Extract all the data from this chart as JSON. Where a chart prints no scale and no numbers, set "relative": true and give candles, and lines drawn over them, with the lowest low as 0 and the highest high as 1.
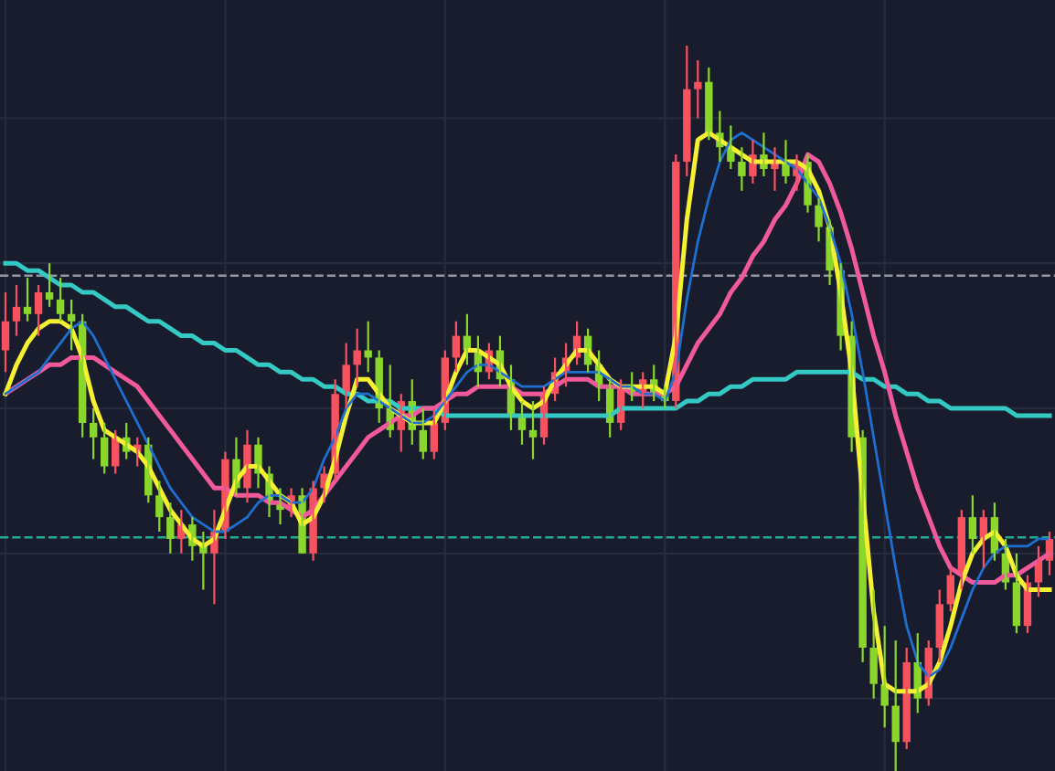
{
  "chart_data": {
    "type": "candlestick",
    "relative": true,
    "grid": true,
    "categories": [
      null,
      null,
      null,
      null,
      null,
      null,
      null,
      null,
      null,
      null,
      null,
      null,
      null,
      null,
      null,
      null,
      null,
      null,
      null,
      null,
      null,
      null,
      null,
      null,
      null,
      null,
      null,
      null,
      null,
      null,
      null,
      null,
      null,
      null,
      null,
      null,
      null,
      null,
      null,
      null,
      null,
      null,
      null,
      null,
      null,
      null,
      null,
      null,
      null,
      null,
      null,
      null,
      null,
      null,
      null,
      null,
      null,
      null,
      null,
      null,
      null,
      null,
      null,
      null,
      null,
      null,
      null,
      null,
      null,
      null,
      null,
      null,
      null,
      null,
      null,
      null,
      null,
      null,
      null,
      null,
      null,
      null,
      null,
      null,
      null,
      null,
      null,
      null,
      null,
      null,
      null,
      null,
      null,
      null,
      null,
      null
    ],
    "ohlc": [
      [
        0.58,
        0.66,
        0.55,
        0.62
      ],
      [
        0.62,
        0.67,
        0.6,
        0.64
      ],
      [
        0.64,
        0.68,
        0.62,
        0.63
      ],
      [
        0.63,
        0.67,
        0.6,
        0.66
      ],
      [
        0.66,
        0.7,
        0.64,
        0.65
      ],
      [
        0.65,
        0.68,
        0.62,
        0.63
      ],
      [
        0.63,
        0.65,
        0.58,
        0.62
      ],
      [
        0.62,
        0.63,
        0.46,
        0.48
      ],
      [
        0.48,
        0.5,
        0.43,
        0.46
      ],
      [
        0.46,
        0.48,
        0.41,
        0.42
      ],
      [
        0.42,
        0.47,
        0.41,
        0.46
      ],
      [
        0.46,
        0.48,
        0.43,
        0.44
      ],
      [
        0.44,
        0.46,
        0.42,
        0.45
      ],
      [
        0.45,
        0.46,
        0.37,
        0.38
      ],
      [
        0.38,
        0.4,
        0.33,
        0.35
      ],
      [
        0.35,
        0.37,
        0.3,
        0.32
      ],
      [
        0.32,
        0.36,
        0.3,
        0.34
      ],
      [
        0.34,
        0.35,
        0.29,
        0.31
      ],
      [
        0.31,
        0.33,
        0.25,
        0.3
      ],
      [
        0.3,
        0.36,
        0.23,
        0.33
      ],
      [
        0.33,
        0.44,
        0.32,
        0.43
      ],
      [
        0.43,
        0.46,
        0.38,
        0.39
      ],
      [
        0.39,
        0.47,
        0.37,
        0.45
      ],
      [
        0.45,
        0.46,
        0.39,
        0.41
      ],
      [
        0.41,
        0.42,
        0.35,
        0.37
      ],
      [
        0.37,
        0.39,
        0.34,
        0.36
      ],
      [
        0.36,
        0.39,
        0.35,
        0.38
      ],
      [
        0.38,
        0.39,
        0.3,
        0.3
      ],
      [
        0.3,
        0.4,
        0.29,
        0.39
      ],
      [
        0.39,
        0.42,
        0.37,
        0.41
      ],
      [
        0.41,
        0.54,
        0.4,
        0.52
      ],
      [
        0.52,
        0.59,
        0.5,
        0.56
      ],
      [
        0.56,
        0.61,
        0.53,
        0.58
      ],
      [
        0.58,
        0.62,
        0.55,
        0.57
      ],
      [
        0.57,
        0.58,
        0.48,
        0.5
      ],
      [
        0.5,
        0.56,
        0.46,
        0.47
      ],
      [
        0.47,
        0.52,
        0.44,
        0.51
      ],
      [
        0.51,
        0.54,
        0.45,
        0.47
      ],
      [
        0.47,
        0.5,
        0.43,
        0.44
      ],
      [
        0.44,
        0.5,
        0.43,
        0.48
      ],
      [
        0.48,
        0.58,
        0.47,
        0.57
      ],
      [
        0.57,
        0.62,
        0.55,
        0.6
      ],
      [
        0.6,
        0.63,
        0.56,
        0.58
      ],
      [
        0.58,
        0.6,
        0.53,
        0.55
      ],
      [
        0.55,
        0.59,
        0.54,
        0.58
      ],
      [
        0.58,
        0.6,
        0.53,
        0.54
      ],
      [
        0.54,
        0.56,
        0.47,
        0.49
      ],
      [
        0.49,
        0.51,
        0.45,
        0.47
      ],
      [
        0.47,
        0.51,
        0.43,
        0.46
      ],
      [
        0.46,
        0.53,
        0.45,
        0.52
      ],
      [
        0.52,
        0.57,
        0.51,
        0.55
      ],
      [
        0.55,
        0.59,
        0.53,
        0.57
      ],
      [
        0.57,
        0.62,
        0.56,
        0.6
      ],
      [
        0.6,
        0.61,
        0.55,
        0.56
      ],
      [
        0.56,
        0.58,
        0.51,
        0.53
      ],
      [
        0.53,
        0.54,
        0.46,
        0.48
      ],
      [
        0.48,
        0.54,
        0.47,
        0.53
      ],
      [
        0.53,
        0.55,
        0.51,
        0.52
      ],
      [
        0.52,
        0.55,
        0.5,
        0.54
      ],
      [
        0.54,
        0.56,
        0.51,
        0.52
      ],
      [
        0.52,
        0.53,
        0.5,
        0.51
      ],
      [
        0.51,
        0.85,
        0.5,
        0.84
      ],
      [
        0.84,
        1.0,
        0.82,
        0.94
      ],
      [
        0.94,
        0.98,
        0.9,
        0.95
      ],
      [
        0.95,
        0.97,
        0.87,
        0.88
      ],
      [
        0.88,
        0.91,
        0.84,
        0.86
      ],
      [
        0.86,
        0.89,
        0.83,
        0.84
      ],
      [
        0.84,
        0.86,
        0.8,
        0.82
      ],
      [
        0.82,
        0.87,
        0.81,
        0.85
      ],
      [
        0.85,
        0.88,
        0.82,
        0.83
      ],
      [
        0.83,
        0.86,
        0.8,
        0.84
      ],
      [
        0.84,
        0.87,
        0.81,
        0.82
      ],
      [
        0.82,
        0.85,
        0.8,
        0.84
      ],
      [
        0.84,
        0.85,
        0.77,
        0.78
      ],
      [
        0.78,
        0.79,
        0.73,
        0.75
      ],
      [
        0.75,
        0.76,
        0.67,
        0.69
      ],
      [
        0.69,
        0.7,
        0.58,
        0.6
      ],
      [
        0.6,
        0.62,
        0.44,
        0.46
      ],
      [
        0.46,
        0.47,
        0.15,
        0.17
      ],
      [
        0.17,
        0.25,
        0.1,
        0.12
      ],
      [
        0.12,
        0.2,
        0.06,
        0.09
      ],
      [
        0.09,
        0.18,
        0.0,
        0.04
      ],
      [
        0.04,
        0.17,
        0.03,
        0.15
      ],
      [
        0.15,
        0.19,
        0.08,
        0.1
      ],
      [
        0.1,
        0.18,
        0.09,
        0.17
      ],
      [
        0.17,
        0.25,
        0.15,
        0.23
      ],
      [
        0.23,
        0.28,
        0.22,
        0.27
      ],
      [
        0.27,
        0.36,
        0.25,
        0.35
      ],
      [
        0.35,
        0.38,
        0.3,
        0.32
      ],
      [
        0.32,
        0.36,
        0.28,
        0.35
      ],
      [
        0.35,
        0.37,
        0.29,
        0.3
      ],
      [
        0.3,
        0.32,
        0.25,
        0.26
      ],
      [
        0.26,
        0.3,
        0.19,
        0.2
      ],
      [
        0.2,
        0.27,
        0.19,
        0.26
      ],
      [
        0.26,
        0.31,
        0.24,
        0.29
      ],
      [
        0.29,
        0.33,
        0.27,
        0.32
      ]
    ],
    "colors": [
      "#f7525f",
      "#f7525f",
      "#8bd62c",
      "#f7525f",
      "#8bd62c",
      "#8bd62c",
      "#8bd62c",
      "#8bd62c",
      "#8bd62c",
      "#8bd62c",
      "#f7525f",
      "#8bd62c",
      "#f7525f",
      "#8bd62c",
      "#8bd62c",
      "#8bd62c",
      "#f7525f",
      "#8bd62c",
      "#8bd62c",
      "#f7525f",
      "#f7525f",
      "#8bd62c",
      "#f7525f",
      "#8bd62c",
      "#8bd62c",
      "#8bd62c",
      "#f7525f",
      "#8bd62c",
      "#f7525f",
      "#f7525f",
      "#f7525f",
      "#f7525f",
      "#f7525f",
      "#8bd62c",
      "#8bd62c",
      "#8bd62c",
      "#f7525f",
      "#8bd62c",
      "#8bd62c",
      "#f7525f",
      "#f7525f",
      "#f7525f",
      "#8bd62c",
      "#8bd62c",
      "#f7525f",
      "#8bd62c",
      "#8bd62c",
      "#8bd62c",
      "#8bd62c",
      "#f7525f",
      "#f7525f",
      "#f7525f",
      "#f7525f",
      "#8bd62c",
      "#8bd62c",
      "#8bd62c",
      "#f7525f",
      "#8bd62c",
      "#f7525f",
      "#8bd62c",
      "#8bd62c",
      "#f7525f",
      "#f7525f",
      "#f7525f",
      "#8bd62c",
      "#8bd62c",
      "#8bd62c",
      "#8bd62c",
      "#f7525f",
      "#8bd62c",
      "#f7525f",
      "#8bd62c",
      "#f7525f",
      "#8bd62c",
      "#8bd62c",
      "#8bd62c",
      "#8bd62c",
      "#8bd62c",
      "#8bd62c",
      "#8bd62c",
      "#8bd62c",
      "#8bd62c",
      "#f7525f",
      "#8bd62c",
      "#f7525f",
      "#f7525f",
      "#f7525f",
      "#f7525f",
      "#8bd62c",
      "#f7525f",
      "#8bd62c",
      "#8bd62c",
      "#8bd62c",
      "#f7525f",
      "#f7525f",
      "#f7525f"
    ],
    "series": [
      {
        "type": "line",
        "color": "#35c9c3",
        "values": [
          0.7,
          0.7,
          0.69,
          0.69,
          0.68,
          0.67,
          0.67,
          0.66,
          0.66,
          0.65,
          0.64,
          0.64,
          0.63,
          0.62,
          0.62,
          0.61,
          0.6,
          0.6,
          0.59,
          0.59,
          0.58,
          0.58,
          0.57,
          0.56,
          0.56,
          0.55,
          0.55,
          0.54,
          0.54,
          0.53,
          0.53,
          0.52,
          0.52,
          0.51,
          0.51,
          0.51,
          0.5,
          0.5,
          0.5,
          0.5,
          0.49,
          0.49,
          0.49,
          0.49,
          0.49,
          0.49,
          0.49,
          0.49,
          0.49,
          0.49,
          0.49,
          0.49,
          0.49,
          0.49,
          0.49,
          0.49,
          0.5,
          0.5,
          0.5,
          0.5,
          0.5,
          0.5,
          0.51,
          0.51,
          0.52,
          0.52,
          0.53,
          0.53,
          0.54,
          0.54,
          0.54,
          0.54,
          0.55,
          0.55,
          0.55,
          0.55,
          0.55,
          0.55,
          0.54,
          0.54,
          0.53,
          0.53,
          0.52,
          0.52,
          0.51,
          0.51,
          0.5,
          0.5,
          0.5,
          0.5,
          0.5,
          0.5,
          0.49,
          0.49,
          0.49,
          0.49
        ]
      },
      {
        "type": "line",
        "color": "#f05a9a",
        "values": [
          0.52,
          0.53,
          0.54,
          0.55,
          0.56,
          0.56,
          0.57,
          0.57,
          0.57,
          0.56,
          0.55,
          0.54,
          0.53,
          0.51,
          0.49,
          0.47,
          0.45,
          0.43,
          0.41,
          0.39,
          0.39,
          0.38,
          0.38,
          0.38,
          0.37,
          0.37,
          0.36,
          0.35,
          0.36,
          0.38,
          0.4,
          0.42,
          0.44,
          0.46,
          0.47,
          0.48,
          0.49,
          0.49,
          0.5,
          0.5,
          0.51,
          0.52,
          0.52,
          0.53,
          0.53,
          0.53,
          0.53,
          0.52,
          0.52,
          0.52,
          0.53,
          0.54,
          0.54,
          0.54,
          0.53,
          0.53,
          0.53,
          0.52,
          0.52,
          0.52,
          0.52,
          0.53,
          0.56,
          0.59,
          0.61,
          0.63,
          0.66,
          0.68,
          0.71,
          0.73,
          0.76,
          0.78,
          0.81,
          0.85,
          0.84,
          0.81,
          0.77,
          0.72,
          0.66,
          0.6,
          0.55,
          0.49,
          0.44,
          0.39,
          0.35,
          0.31,
          0.28,
          0.27,
          0.26,
          0.26,
          0.26,
          0.27,
          0.27,
          0.28,
          0.29,
          0.3
        ]
      },
      {
        "type": "line",
        "color": "#1e6fd0",
        "values": [
          0.52,
          0.53,
          0.54,
          0.55,
          0.57,
          0.59,
          0.61,
          0.62,
          0.6,
          0.57,
          0.54,
          0.51,
          0.48,
          0.45,
          0.42,
          0.39,
          0.37,
          0.35,
          0.34,
          0.33,
          0.33,
          0.34,
          0.35,
          0.37,
          0.38,
          0.38,
          0.37,
          0.37,
          0.39,
          0.43,
          0.46,
          0.5,
          0.52,
          0.52,
          0.51,
          0.5,
          0.49,
          0.48,
          0.48,
          0.49,
          0.51,
          0.53,
          0.55,
          0.56,
          0.56,
          0.55,
          0.54,
          0.53,
          0.53,
          0.53,
          0.54,
          0.55,
          0.55,
          0.55,
          0.55,
          0.54,
          0.53,
          0.53,
          0.52,
          0.52,
          0.51,
          0.55,
          0.65,
          0.73,
          0.79,
          0.84,
          0.87,
          0.88,
          0.87,
          0.86,
          0.85,
          0.84,
          0.83,
          0.81,
          0.79,
          0.75,
          0.7,
          0.63,
          0.55,
          0.46,
          0.37,
          0.28,
          0.2,
          0.15,
          0.13,
          0.14,
          0.17,
          0.21,
          0.25,
          0.28,
          0.3,
          0.31,
          0.31,
          0.31,
          0.32,
          0.32
        ]
      },
      {
        "type": "line",
        "color": "#f5f032",
        "values": [
          0.52,
          0.56,
          0.59,
          0.61,
          0.62,
          0.62,
          0.61,
          0.57,
          0.51,
          0.47,
          0.46,
          0.45,
          0.44,
          0.42,
          0.39,
          0.36,
          0.34,
          0.32,
          0.31,
          0.32,
          0.36,
          0.4,
          0.42,
          0.42,
          0.4,
          0.38,
          0.37,
          0.34,
          0.35,
          0.38,
          0.43,
          0.49,
          0.54,
          0.54,
          0.52,
          0.5,
          0.49,
          0.48,
          0.48,
          0.48,
          0.51,
          0.55,
          0.58,
          0.58,
          0.57,
          0.56,
          0.53,
          0.51,
          0.5,
          0.51,
          0.54,
          0.56,
          0.58,
          0.58,
          0.56,
          0.54,
          0.53,
          0.53,
          0.53,
          0.53,
          0.52,
          0.6,
          0.76,
          0.87,
          0.88,
          0.87,
          0.86,
          0.85,
          0.84,
          0.84,
          0.84,
          0.84,
          0.84,
          0.83,
          0.8,
          0.75,
          0.66,
          0.55,
          0.38,
          0.22,
          0.12,
          0.11,
          0.11,
          0.11,
          0.12,
          0.15,
          0.2,
          0.26,
          0.3,
          0.32,
          0.33,
          0.31,
          0.27,
          0.25,
          0.25,
          0.25
        ]
      }
    ],
    "ref_lines": [
      {
        "axis": "y",
        "value": 0.683,
        "color": "#9598a1",
        "line_style": "dashed"
      },
      {
        "axis": "y",
        "value": 0.322,
        "color": "#22ab94",
        "line_style": "dashed"
      }
    ]
  }
}
